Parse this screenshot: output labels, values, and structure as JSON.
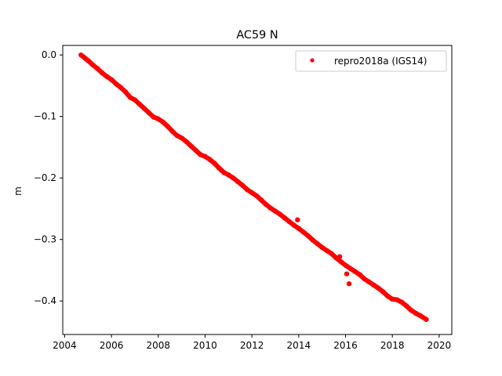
{
  "chart_data": {
    "type": "scatter",
    "title": "AC59 N",
    "xlabel": "",
    "ylabel": "m",
    "xlim": [
      2003.92,
      2020.54
    ],
    "ylim": [
      -0.4545,
      0.0155
    ],
    "x_ticks": [
      2004,
      2006,
      2008,
      2010,
      2012,
      2014,
      2016,
      2018,
      2020
    ],
    "x_tick_labels": [
      "2004",
      "2006",
      "2008",
      "2010",
      "2012",
      "2014",
      "2016",
      "2018",
      "2020"
    ],
    "y_ticks": [
      0.0,
      -0.1,
      -0.2,
      -0.3,
      -0.4
    ],
    "y_tick_labels": [
      "0.0",
      "−0.1",
      "−0.2",
      "−0.3",
      "−0.4"
    ],
    "grid": false,
    "legend_position": "top-right",
    "series": [
      {
        "name": "repro2018a (IGS14)",
        "color": "#ff0000",
        "marker": "dot",
        "points": [
          [
            2004.7,
            0.0
          ],
          [
            2004.8,
            -0.003
          ],
          [
            2004.9,
            -0.006
          ],
          [
            2005.0,
            -0.009
          ],
          [
            2005.2,
            -0.016
          ],
          [
            2005.4,
            -0.022
          ],
          [
            2005.6,
            -0.029
          ],
          [
            2005.8,
            -0.035
          ],
          [
            2006.0,
            -0.04
          ],
          [
            2006.2,
            -0.047
          ],
          [
            2006.4,
            -0.053
          ],
          [
            2006.6,
            -0.06
          ],
          [
            2006.8,
            -0.069
          ],
          [
            2007.0,
            -0.073
          ],
          [
            2007.2,
            -0.08
          ],
          [
            2007.4,
            -0.087
          ],
          [
            2007.6,
            -0.094
          ],
          [
            2007.8,
            -0.101
          ],
          [
            2008.0,
            -0.104
          ],
          [
            2008.2,
            -0.109
          ],
          [
            2008.4,
            -0.116
          ],
          [
            2008.6,
            -0.124
          ],
          [
            2008.8,
            -0.131
          ],
          [
            2009.0,
            -0.135
          ],
          [
            2009.2,
            -0.141
          ],
          [
            2009.4,
            -0.148
          ],
          [
            2009.6,
            -0.155
          ],
          [
            2009.8,
            -0.162
          ],
          [
            2010.0,
            -0.165
          ],
          [
            2010.2,
            -0.17
          ],
          [
            2010.4,
            -0.176
          ],
          [
            2010.6,
            -0.184
          ],
          [
            2010.8,
            -0.191
          ],
          [
            2011.0,
            -0.195
          ],
          [
            2011.2,
            -0.2
          ],
          [
            2011.4,
            -0.206
          ],
          [
            2011.6,
            -0.212
          ],
          [
            2011.8,
            -0.219
          ],
          [
            2012.0,
            -0.224
          ],
          [
            2012.2,
            -0.229
          ],
          [
            2012.4,
            -0.236
          ],
          [
            2012.6,
            -0.243
          ],
          [
            2012.8,
            -0.249
          ],
          [
            2013.0,
            -0.254
          ],
          [
            2013.2,
            -0.259
          ],
          [
            2013.4,
            -0.265
          ],
          [
            2013.6,
            -0.271
          ],
          [
            2013.8,
            -0.277
          ],
          [
            2014.0,
            -0.282
          ],
          [
            2014.2,
            -0.288
          ],
          [
            2014.4,
            -0.294
          ],
          [
            2014.6,
            -0.301
          ],
          [
            2014.8,
            -0.307
          ],
          [
            2015.0,
            -0.313
          ],
          [
            2015.2,
            -0.318
          ],
          [
            2015.4,
            -0.323
          ],
          [
            2015.6,
            -0.33
          ],
          [
            2015.8,
            -0.336
          ],
          [
            2016.0,
            -0.342
          ],
          [
            2016.2,
            -0.347
          ],
          [
            2016.4,
            -0.352
          ],
          [
            2016.6,
            -0.357
          ],
          [
            2016.8,
            -0.364
          ],
          [
            2017.0,
            -0.369
          ],
          [
            2017.2,
            -0.374
          ],
          [
            2017.4,
            -0.379
          ],
          [
            2017.6,
            -0.385
          ],
          [
            2017.8,
            -0.392
          ],
          [
            2018.0,
            -0.397
          ],
          [
            2018.2,
            -0.398
          ],
          [
            2018.4,
            -0.402
          ],
          [
            2018.6,
            -0.408
          ],
          [
            2018.8,
            -0.415
          ],
          [
            2019.0,
            -0.42
          ],
          [
            2019.2,
            -0.424
          ],
          [
            2019.45,
            -0.43
          ],
          [
            2016.05,
            -0.356
          ],
          [
            2016.15,
            -0.372
          ],
          [
            2013.95,
            -0.268
          ],
          [
            2015.75,
            -0.328
          ]
        ]
      }
    ]
  }
}
